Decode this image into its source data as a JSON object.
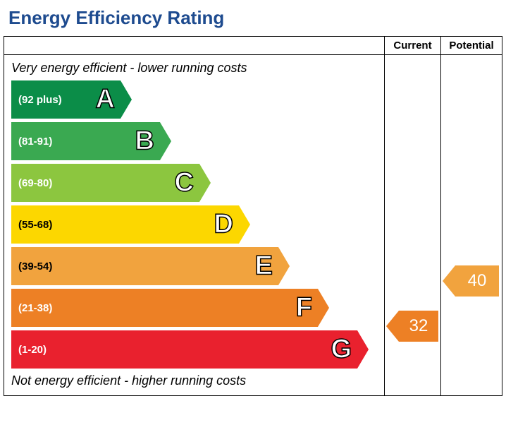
{
  "title": "Energy Efficiency Rating",
  "title_color": "#1e4b8f",
  "columns": {
    "current": "Current",
    "potential": "Potential"
  },
  "annotations": {
    "top": "Very energy efficient - lower running costs",
    "bottom": "Not energy efficient - higher running costs"
  },
  "chart": {
    "band_height": 54,
    "band_gap": 5,
    "base_width": 155,
    "width_step": 56,
    "arrow_width": 16
  },
  "bands": [
    {
      "letter": "A",
      "range_label": "(92 plus)",
      "color": "#0b8d48",
      "range_text_color": "#ffffff"
    },
    {
      "letter": "B",
      "range_label": "(81-91)",
      "color": "#3aa951",
      "range_text_color": "#ffffff"
    },
    {
      "letter": "C",
      "range_label": "(69-80)",
      "color": "#8cc63f",
      "range_text_color": "#ffffff"
    },
    {
      "letter": "D",
      "range_label": "(55-68)",
      "color": "#fcd700",
      "range_text_color": "#000000"
    },
    {
      "letter": "E",
      "range_label": "(39-54)",
      "color": "#f1a33e",
      "range_text_color": "#000000"
    },
    {
      "letter": "F",
      "range_label": "(21-38)",
      "color": "#ed8025",
      "range_text_color": "#ffffff"
    },
    {
      "letter": "G",
      "range_label": "(1-20)",
      "color": "#e9212e",
      "range_text_color": "#ffffff"
    }
  ],
  "current": {
    "value": "32",
    "band_index": 5,
    "color": "#ed8025"
  },
  "potential": {
    "value": "40",
    "band_index": 4,
    "color": "#f1a33e"
  }
}
